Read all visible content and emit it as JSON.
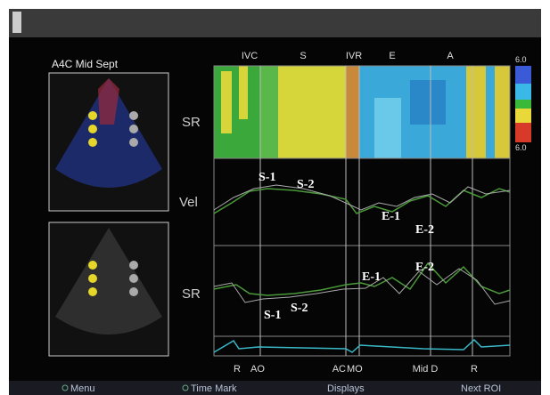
{
  "header": {
    "title": "A4C Mid Sept"
  },
  "phase_labels": [
    "IVC",
    "S",
    "IVR",
    "E",
    "A"
  ],
  "scale": {
    "top": "6.0",
    "bottom": "6.0"
  },
  "row_labels": [
    "SR",
    "Vel",
    "SR"
  ],
  "velocity_annotations": [
    "S-1",
    "S-2",
    "E-1",
    "E-2"
  ],
  "strain_rate_annotations": [
    "E-1",
    "E-2",
    "S-1",
    "S-2"
  ],
  "ecg_labels": [
    "R",
    "AO",
    "AC",
    "MO",
    "Mid D",
    "R"
  ],
  "menu": [
    "Menu",
    "Time Mark",
    "Displays",
    "Next ROI"
  ]
}
